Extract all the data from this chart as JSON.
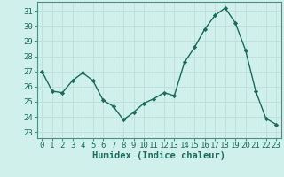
{
  "x": [
    0,
    1,
    2,
    3,
    4,
    5,
    6,
    7,
    8,
    9,
    10,
    11,
    12,
    13,
    14,
    15,
    16,
    17,
    18,
    19,
    20,
    21,
    22,
    23
  ],
  "y": [
    27.0,
    25.7,
    25.6,
    26.4,
    26.9,
    26.4,
    25.1,
    24.7,
    23.8,
    24.3,
    24.9,
    25.2,
    25.6,
    25.4,
    27.6,
    28.6,
    29.8,
    30.7,
    31.2,
    30.2,
    28.4,
    25.7,
    23.9,
    23.5
  ],
  "line_color": "#1a6b5a",
  "marker": "D",
  "marker_size": 2.2,
  "bg_color": "#cff0eb",
  "grid_color": "#c0ddd8",
  "xlabel": "Humidex (Indice chaleur)",
  "xlabel_fontsize": 7.5,
  "ytick_labels": [
    23,
    24,
    25,
    26,
    27,
    28,
    29,
    30,
    31
  ],
  "xtick_labels": [
    0,
    1,
    2,
    3,
    4,
    5,
    6,
    7,
    8,
    9,
    10,
    11,
    12,
    13,
    14,
    15,
    16,
    17,
    18,
    19,
    20,
    21,
    22,
    23
  ],
  "ylim": [
    22.6,
    31.6
  ],
  "xlim": [
    -0.5,
    23.5
  ],
  "tick_fontsize": 6.5,
  "line_width": 1.0,
  "spine_color": "#4a9080"
}
